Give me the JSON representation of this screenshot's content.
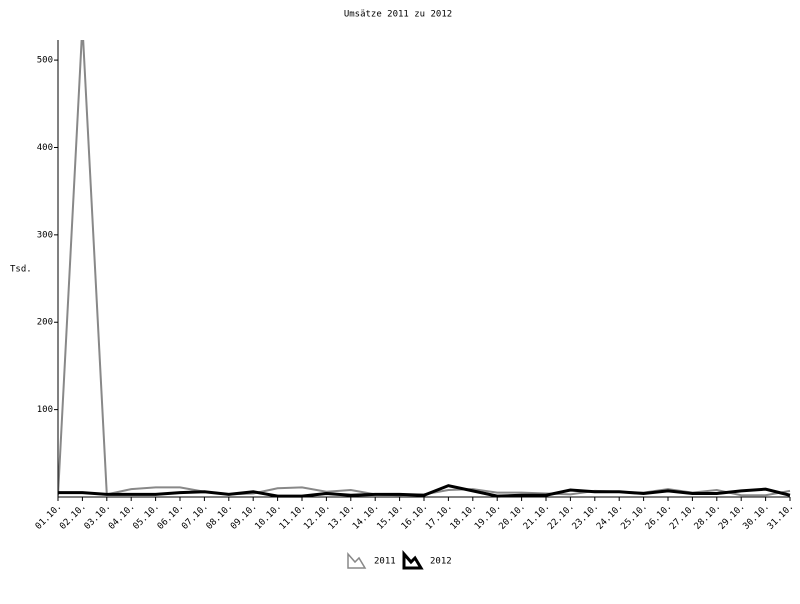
{
  "chart_data": {
    "type": "line",
    "title": "Umsätze 2011 zu 2012",
    "y_label": "Tsd.",
    "categories": [
      "01.10.",
      "02.10.",
      "03.10.",
      "04.10.",
      "05.10.",
      "06.10.",
      "07.10.",
      "08.10.",
      "09.10.",
      "10.10.",
      "11.10.",
      "12.10.",
      "13.10.",
      "14.10.",
      "15.10.",
      "16.10.",
      "17.10.",
      "18.10.",
      "19.10.",
      "20.10.",
      "21.10.",
      "22.10.",
      "23.10.",
      "24.10.",
      "25.10.",
      "26.10.",
      "27.10.",
      "28.10.",
      "29.10.",
      "30.10.",
      "31.10."
    ],
    "series": [
      {
        "name": "2011",
        "color": "#888888",
        "values": [
          2,
          540,
          3,
          9,
          11,
          11,
          6,
          3,
          4,
          10,
          11,
          6,
          8,
          3,
          2,
          3,
          8,
          9,
          5,
          5,
          4,
          3,
          7,
          6,
          5,
          9,
          5,
          8,
          2,
          2,
          7
        ]
      },
      {
        "name": "2012",
        "color": "#000000",
        "values": [
          5,
          5,
          3,
          3,
          3,
          5,
          6,
          3,
          6,
          1,
          1,
          4,
          2,
          3,
          3,
          2,
          13,
          7,
          1,
          2,
          2,
          8,
          6,
          6,
          4,
          7,
          4,
          4,
          7,
          9,
          2
        ]
      }
    ],
    "ylim": [
      0,
      523
    ],
    "yticks": [
      100,
      200,
      300,
      400,
      500
    ]
  }
}
